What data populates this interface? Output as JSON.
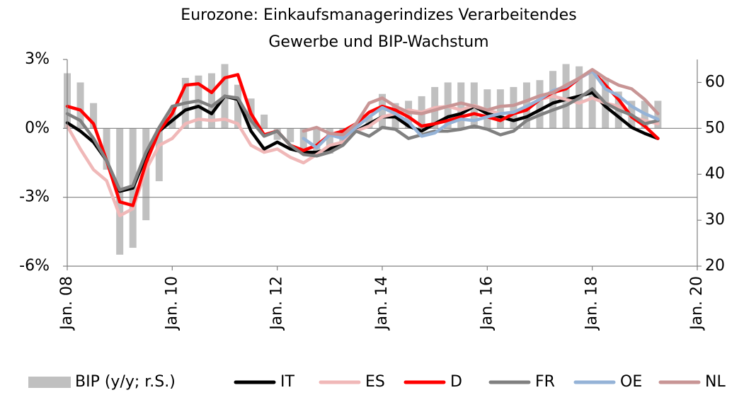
{
  "chart_data": {
    "type": "line",
    "title": [
      "Eurozone: Einkaufsmanagerindizes Verarbeitendes",
      "Gewerbe und BIP-Wachstum"
    ],
    "x": [
      2008,
      2008.25,
      2008.5,
      2008.75,
      2009,
      2009.25,
      2009.5,
      2009.75,
      2010,
      2010.25,
      2010.5,
      2010.75,
      2011,
      2011.25,
      2011.5,
      2011.75,
      2012,
      2012.25,
      2012.5,
      2012.75,
      2013,
      2013.25,
      2013.5,
      2013.75,
      2014,
      2014.25,
      2014.5,
      2014.75,
      2015,
      2015.25,
      2015.5,
      2015.75,
      2016,
      2016.25,
      2016.5,
      2016.75,
      2017,
      2017.25,
      2017.5,
      2017.75,
      2018,
      2018.25,
      2018.5,
      2018.75,
      2019,
      2019.25
    ],
    "xlim": [
      2008,
      2020
    ],
    "xticks": [
      {
        "value": 2008,
        "label": "Jan. 08"
      },
      {
        "value": 2010,
        "label": "Jan. 10"
      },
      {
        "value": 2012,
        "label": "Jan. 12"
      },
      {
        "value": 2014,
        "label": "Jan. 14"
      },
      {
        "value": 2016,
        "label": "Jan. 16"
      },
      {
        "value": 2018,
        "label": "Jan. 18"
      },
      {
        "value": 2020,
        "label": "Jan. 20"
      }
    ],
    "ylim": [
      -6,
      3
    ],
    "yticks": [
      {
        "value": -6,
        "label": "-6%"
      },
      {
        "value": -3,
        "label": "-3%"
      },
      {
        "value": 0,
        "label": "0%"
      },
      {
        "value": 3,
        "label": "3%"
      }
    ],
    "y2lim": [
      20,
      65
    ],
    "y2ticks": [
      20,
      30,
      40,
      50,
      60
    ],
    "grid": true,
    "legend": "bottom",
    "series": [
      {
        "name": "BIP (y/y; r.S.)",
        "type": "bar",
        "color": "#c0c0c0",
        "values": [
          2.4,
          2.0,
          1.1,
          -1.8,
          -5.5,
          -5.2,
          -4.0,
          -2.3,
          0.8,
          2.2,
          2.3,
          2.4,
          2.8,
          1.9,
          1.3,
          0.6,
          -0.5,
          -0.6,
          -0.9,
          -1.0,
          -1.1,
          -0.6,
          -0.2,
          0.5,
          1.5,
          1.1,
          1.2,
          1.4,
          1.8,
          2.0,
          2.0,
          2.0,
          1.7,
          1.7,
          1.8,
          2.0,
          2.1,
          2.5,
          2.8,
          2.7,
          2.4,
          2.2,
          1.6,
          1.2,
          1.2,
          1.2
        ]
      },
      {
        "name": "IT",
        "axis": "y2",
        "color": "#000000",
        "values": [
          51.2,
          49.4,
          47,
          43,
          36.3,
          37,
          44,
          49.4,
          51.7,
          54,
          54.8,
          53.2,
          57,
          56.3,
          49.4,
          45.5,
          47,
          45.5,
          44.8,
          44.8,
          45.5,
          47,
          49.4,
          51,
          52.5,
          52.5,
          50.5,
          49.4,
          51,
          52.5,
          53.2,
          54.8,
          53.2,
          52.5,
          51.7,
          52.5,
          54,
          55.5,
          56.3,
          57,
          57.8,
          54.8,
          52.5,
          50.2,
          48.9,
          47.8
        ]
      },
      {
        "name": "ES",
        "axis": "y2",
        "color": "#f0b8b8",
        "values": [
          50.5,
          45.5,
          41,
          38.6,
          31,
          32.5,
          41,
          46.3,
          47.8,
          51,
          52,
          51.7,
          52,
          51,
          46.3,
          44.8,
          45.5,
          43.7,
          42.5,
          44.3,
          46.3,
          47,
          49.4,
          50.5,
          52.5,
          53.2,
          54,
          53.5,
          54.5,
          54.8,
          54,
          55,
          54,
          53.2,
          53.5,
          54.8,
          56.3,
          57,
          56.3,
          55.5,
          56.6,
          55.5,
          54.8,
          52.5,
          51.7,
          51
        ]
      },
      {
        "name": "D",
        "axis": "y2",
        "color": "#ff0000",
        "values": [
          54.8,
          54,
          51,
          43,
          34,
          33.2,
          42.5,
          49.4,
          53.2,
          59.4,
          59.7,
          57.8,
          61,
          61.7,
          53.2,
          48.6,
          49.4,
          46.3,
          45.2,
          46.3,
          48.6,
          49.4,
          51,
          53.5,
          54.8,
          54,
          52.5,
          50.5,
          51,
          51.7,
          52.5,
          53.2,
          52.5,
          51.7,
          53.2,
          54,
          56.3,
          57.8,
          58.6,
          60.9,
          62.5,
          59.4,
          56.3,
          52.5,
          50.5,
          47.8
        ]
      },
      {
        "name": "FR",
        "axis": "y2",
        "color": "#808080",
        "values": [
          53.2,
          51.7,
          47.8,
          43,
          36.6,
          37.5,
          44.8,
          50.2,
          54.8,
          55.5,
          56,
          54.8,
          57,
          56.6,
          51.7,
          48.3,
          49.4,
          46.3,
          44.3,
          44,
          44.8,
          46.3,
          49.4,
          48.3,
          50.2,
          49.8,
          47.8,
          48.6,
          49.4,
          49.4,
          49.8,
          50.5,
          49.8,
          48.6,
          49.4,
          51.7,
          52.9,
          54,
          55,
          56.6,
          58.6,
          55.5,
          54,
          52.9,
          51,
          51.7
        ]
      },
      {
        "name": "OE",
        "axis": "y2",
        "color": "#95b3d7",
        "values": [
          null,
          null,
          null,
          null,
          null,
          null,
          null,
          null,
          null,
          null,
          null,
          null,
          null,
          null,
          null,
          null,
          null,
          null,
          47.8,
          45.8,
          48.6,
          47.8,
          50.2,
          52.5,
          54.5,
          53.2,
          51.4,
          48.3,
          49,
          51,
          52,
          51.7,
          52.5,
          53.2,
          53.5,
          54.8,
          56.3,
          58.2,
          59.1,
          60.9,
          62.5,
          58.6,
          57.1,
          54.8,
          53.2,
          52
        ]
      },
      {
        "name": "NL",
        "axis": "y2",
        "color": "#c89595",
        "values": [
          null,
          null,
          null,
          null,
          null,
          null,
          null,
          null,
          null,
          null,
          null,
          null,
          null,
          null,
          null,
          null,
          null,
          null,
          49.4,
          50.2,
          48.9,
          48.6,
          51,
          55.5,
          56.6,
          54.8,
          53.5,
          53.2,
          54,
          54.8,
          55.5,
          54.8,
          54,
          54.8,
          55,
          56,
          57.1,
          57.8,
          59.4,
          60.9,
          62.8,
          60.9,
          59.4,
          58.6,
          56.3,
          53.2
        ]
      }
    ]
  }
}
